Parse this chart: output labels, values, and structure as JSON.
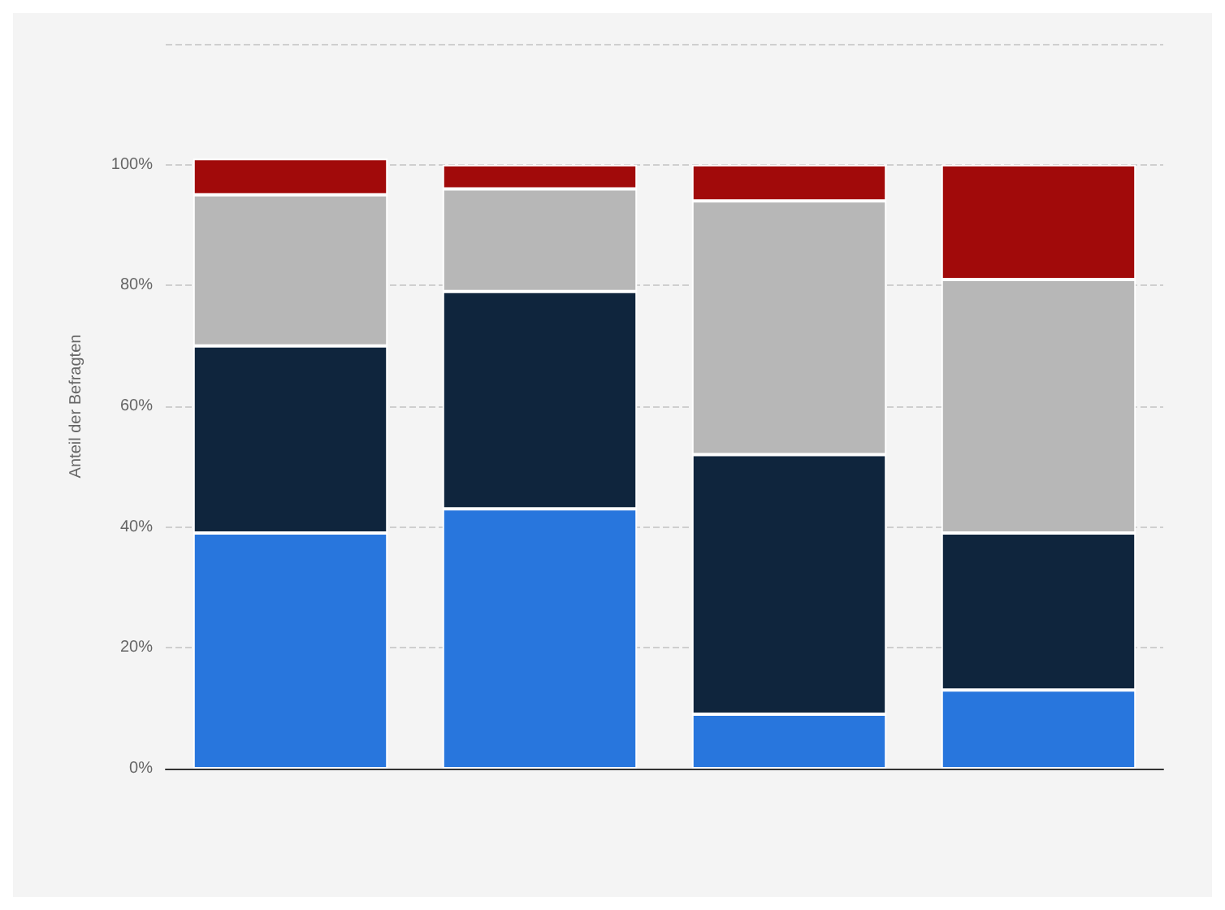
{
  "chart_data": {
    "type": "bar",
    "stacked": true,
    "ylabel": "Anteil der Befragten",
    "categories": [
      null,
      null,
      null,
      null
    ],
    "series": [
      {
        "color": "#2876dd",
        "values": [
          39,
          43,
          9,
          13
        ]
      },
      {
        "color": "#0f253d",
        "values": [
          31,
          36,
          43,
          26
        ]
      },
      {
        "color": "#b7b7b7",
        "values": [
          25,
          17,
          42,
          42
        ]
      },
      {
        "color": "#a10a0a",
        "values": [
          6,
          4,
          6,
          19
        ]
      }
    ],
    "ylim": [
      0,
      120
    ],
    "yticks": [
      {
        "value": 0,
        "label": "0%"
      },
      {
        "value": 20,
        "label": "20%"
      },
      {
        "value": 40,
        "label": "40%"
      },
      {
        "value": 60,
        "label": "60%"
      },
      {
        "value": 80,
        "label": "80%"
      },
      {
        "value": 100,
        "label": "100%"
      },
      {
        "value": 120,
        "label": null
      }
    ],
    "grid": "y"
  }
}
